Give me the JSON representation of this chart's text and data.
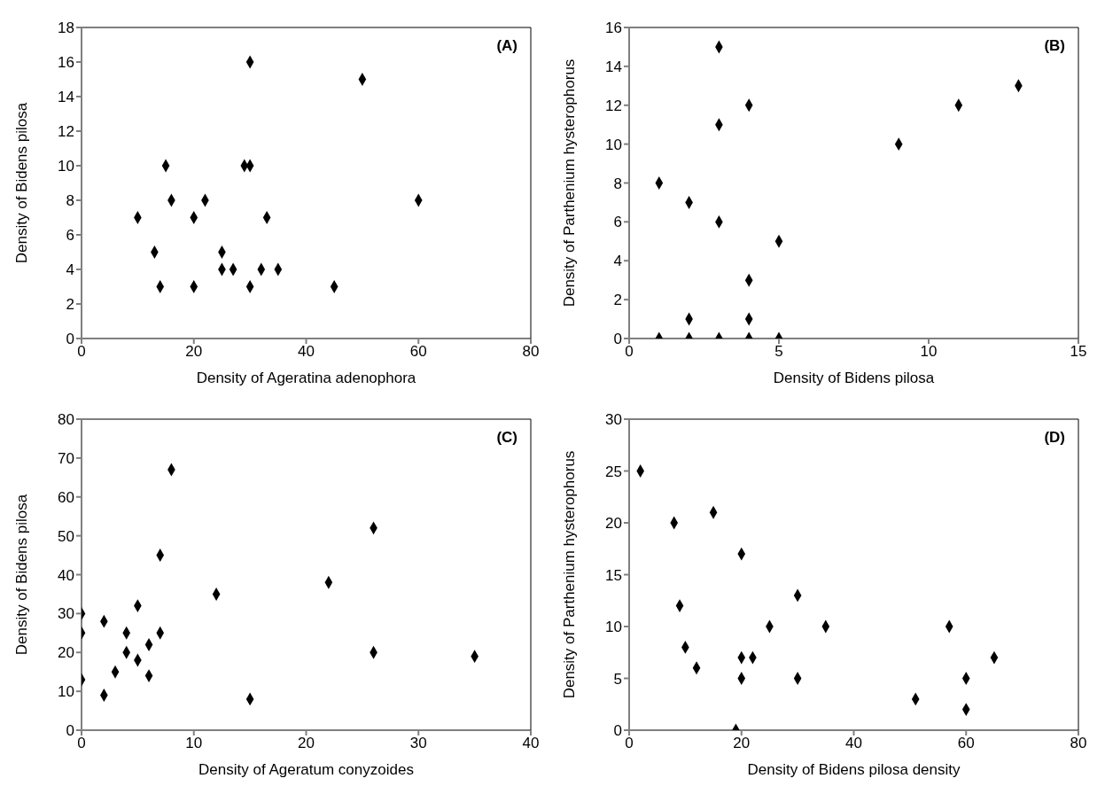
{
  "chart_data": [
    {
      "type": "scatter",
      "annotations": [
        "(A)"
      ],
      "xlabel": "Density of Ageratina adenophora",
      "ylabel": "Density of Bidens pilosa",
      "marker": "diamond",
      "grid": false,
      "xlim": [
        0,
        80
      ],
      "xticks": [
        0,
        20,
        40,
        60,
        80
      ],
      "ylim": [
        0,
        18
      ],
      "yticks": [
        0,
        2,
        4,
        6,
        8,
        10,
        12,
        14,
        16,
        18
      ],
      "series": [
        {
          "color": "#000000",
          "x": [
            10,
            13,
            14,
            15,
            16,
            20,
            20,
            22,
            25,
            25,
            27,
            29,
            30,
            30,
            30,
            32,
            33,
            35,
            45,
            50,
            60
          ],
          "values": [
            7,
            5,
            3,
            10,
            8,
            7,
            3,
            8,
            5,
            4,
            4,
            10,
            10,
            16,
            3,
            4,
            7,
            4,
            3,
            15,
            8
          ]
        }
      ]
    },
    {
      "type": "scatter",
      "annotations": [
        "(B)"
      ],
      "xlabel": "Density of Bidens pilosa",
      "ylabel": "Density of Parthenium hysterophorus",
      "marker": "diamond",
      "grid": false,
      "xlim": [
        0,
        15
      ],
      "xticks": [
        0,
        5,
        10,
        15
      ],
      "ylim": [
        0,
        16
      ],
      "yticks": [
        0,
        2,
        4,
        6,
        8,
        10,
        12,
        14,
        16
      ],
      "series": [
        {
          "color": "#000000",
          "x": [
            1,
            2,
            3,
            3,
            3,
            4,
            4,
            5,
            9,
            11,
            13,
            2,
            4,
            1,
            2,
            3,
            4,
            5
          ],
          "values": [
            8,
            7,
            6,
            15,
            11,
            12,
            3,
            5,
            10,
            12,
            13,
            1,
            1,
            0,
            0,
            0,
            0,
            0
          ]
        }
      ]
    },
    {
      "type": "scatter",
      "annotations": [
        "(C)"
      ],
      "xlabel": "Density of Ageratum conyzoides",
      "ylabel": "Density of Bidens pilosa",
      "marker": "diamond",
      "grid": false,
      "xlim": [
        0,
        40
      ],
      "xticks": [
        0,
        10,
        20,
        30,
        40
      ],
      "ylim": [
        0,
        80
      ],
      "yticks": [
        0,
        10,
        20,
        30,
        40,
        50,
        60,
        70,
        80
      ],
      "series": [
        {
          "color": "#000000",
          "x": [
            0,
            0,
            0,
            2,
            2,
            3,
            4,
            4,
            5,
            5,
            6,
            6,
            7,
            7,
            8,
            12,
            15,
            22,
            26,
            26,
            35
          ],
          "values": [
            30,
            25,
            13,
            28,
            9,
            15,
            25,
            20,
            32,
            18,
            22,
            14,
            45,
            25,
            67,
            35,
            8,
            38,
            52,
            20,
            19
          ]
        }
      ]
    },
    {
      "type": "scatter",
      "annotations": [
        "(D)"
      ],
      "xlabel": "Density of Bidens pilosa density",
      "ylabel": "Density of Parthenium hysterophorus",
      "marker": "diamond",
      "grid": false,
      "xlim": [
        0,
        80
      ],
      "xticks": [
        0,
        20,
        40,
        60,
        80
      ],
      "ylim": [
        0,
        30
      ],
      "yticks": [
        0,
        5,
        10,
        15,
        20,
        25,
        30
      ],
      "series": [
        {
          "color": "#000000",
          "x": [
            2,
            8,
            9,
            10,
            12,
            15,
            19,
            20,
            20,
            20,
            22,
            25,
            30,
            30,
            35,
            51,
            57,
            60,
            60,
            65
          ],
          "values": [
            25,
            20,
            12,
            8,
            6,
            21,
            0,
            17,
            7,
            5,
            7,
            10,
            13,
            5,
            10,
            3,
            10,
            5,
            2,
            7
          ]
        }
      ]
    }
  ]
}
